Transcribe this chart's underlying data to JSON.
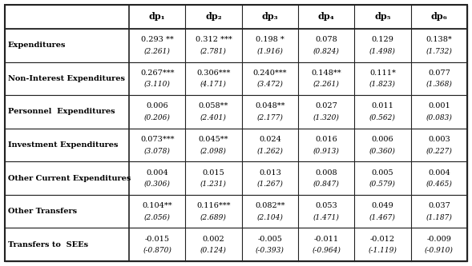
{
  "columns": [
    "dp₁",
    "dp₂",
    "dp₃",
    "dp₄",
    "dp₅",
    "dp₆"
  ],
  "rows": [
    {
      "label": "Expenditures",
      "values": [
        "0.293 **",
        "0.312 ***",
        "0.198 *",
        "0.078",
        "0.129",
        "0.138*"
      ],
      "tstats": [
        "(2.261)",
        "(2.781)",
        "(1.916)",
        "(0.824)",
        "(1.498)",
        "(1.732)"
      ]
    },
    {
      "label": "Non-Interest Expenditures",
      "values": [
        "0.267***",
        "0.306***",
        "0.240***",
        "0.148**",
        "0.111*",
        "0.077"
      ],
      "tstats": [
        "(3.110)",
        "(4.171)",
        "(3.472)",
        "(2.261)",
        "(1.823)",
        "(1.368)"
      ]
    },
    {
      "label": "Personnel  Expenditures",
      "values": [
        "0.006",
        "0.058**",
        "0.048**",
        "0.027",
        "0.011",
        "0.001"
      ],
      "tstats": [
        "(0.206)",
        "(2.401)",
        "(2.177)",
        "(1.320)",
        "(0.562)",
        "(0.083)"
      ]
    },
    {
      "label": "Investment Expenditures",
      "values": [
        "0.073***",
        "0.045**",
        "0.024",
        "0.016",
        "0.006",
        "0.003"
      ],
      "tstats": [
        "(3.078)",
        "(2.098)",
        "(1.262)",
        "(0.913)",
        "(0.360)",
        "(0.227)"
      ]
    },
    {
      "label": "Other Current Expenditures",
      "values": [
        "0.004",
        "0.015",
        "0.013",
        "0.008",
        "0.005",
        "0.004"
      ],
      "tstats": [
        "(0.306)",
        "(1.231)",
        "(1.267)",
        "(0.847)",
        "(0.579)",
        "(0.465)"
      ]
    },
    {
      "label": "Other Transfers",
      "values": [
        "0.104**",
        "0.116***",
        "0.082**",
        "0.053",
        "0.049",
        "0.037"
      ],
      "tstats": [
        "(2.056)",
        "(2.689)",
        "(2.104)",
        "(1.471)",
        "(1.467)",
        "(1.187)"
      ]
    },
    {
      "label": "Transfers to  SEEs",
      "values": [
        "-0.015",
        "0.002",
        "-0.005",
        "-0.011",
        "-0.012",
        "-0.009"
      ],
      "tstats": [
        "(-0.870)",
        "(0.124)",
        "(-0.393)",
        "(-0.964)",
        "(-1.119)",
        "(-0.910)"
      ]
    }
  ]
}
